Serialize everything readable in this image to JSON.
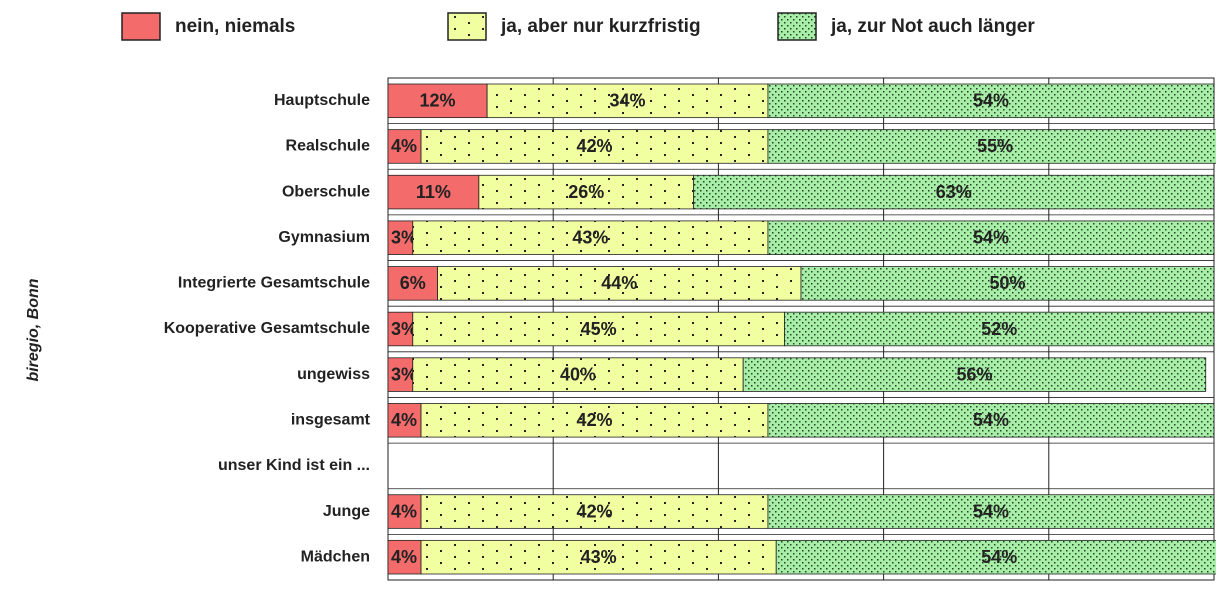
{
  "chart_data": {
    "type": "bar",
    "orientation": "horizontal",
    "stacked": true,
    "side_note": "biregio, Bonn",
    "categories": [
      "Hauptschule",
      "Realschule",
      "Oberschule",
      "Gymnasium",
      "Integrierte Gesamtschule",
      "Kooperative Gesamtschule",
      "ungewiss",
      "insgesamt",
      "unser Kind ist ein ...",
      "Junge",
      "Mädchen"
    ],
    "series": [
      {
        "name": "nein, niemals",
        "color": "#f36b6b",
        "values": [
          12,
          4,
          11,
          3,
          6,
          3,
          3,
          4,
          null,
          4,
          4
        ],
        "value_labels": [
          "12%",
          "4%",
          "11%",
          "3%",
          "6%",
          "3%",
          "3%",
          "4%",
          null,
          "4%",
          "4%"
        ]
      },
      {
        "name": "ja, aber nur kurzfristig",
        "color": "#f2ffa0",
        "values": [
          34,
          42,
          26,
          43,
          44,
          45,
          40,
          42,
          null,
          42,
          43
        ],
        "value_labels": [
          "34%",
          "42%",
          "26%",
          "43%",
          "44%",
          "45%",
          "40%",
          "42%",
          null,
          "42%",
          "43%"
        ]
      },
      {
        "name": "ja, zur Not auch länger",
        "color": "#a8eea8",
        "values": [
          54,
          55,
          63,
          54,
          50,
          52,
          56,
          54,
          null,
          54,
          54
        ],
        "value_labels": [
          "54%",
          "55%",
          "63%",
          "54%",
          "50%",
          "52%",
          "56%",
          "54%",
          null,
          "54%",
          "54%"
        ]
      }
    ],
    "xlim": [
      0,
      100
    ],
    "xticks": [
      0,
      20,
      40,
      60,
      80,
      100
    ],
    "grid": true
  }
}
